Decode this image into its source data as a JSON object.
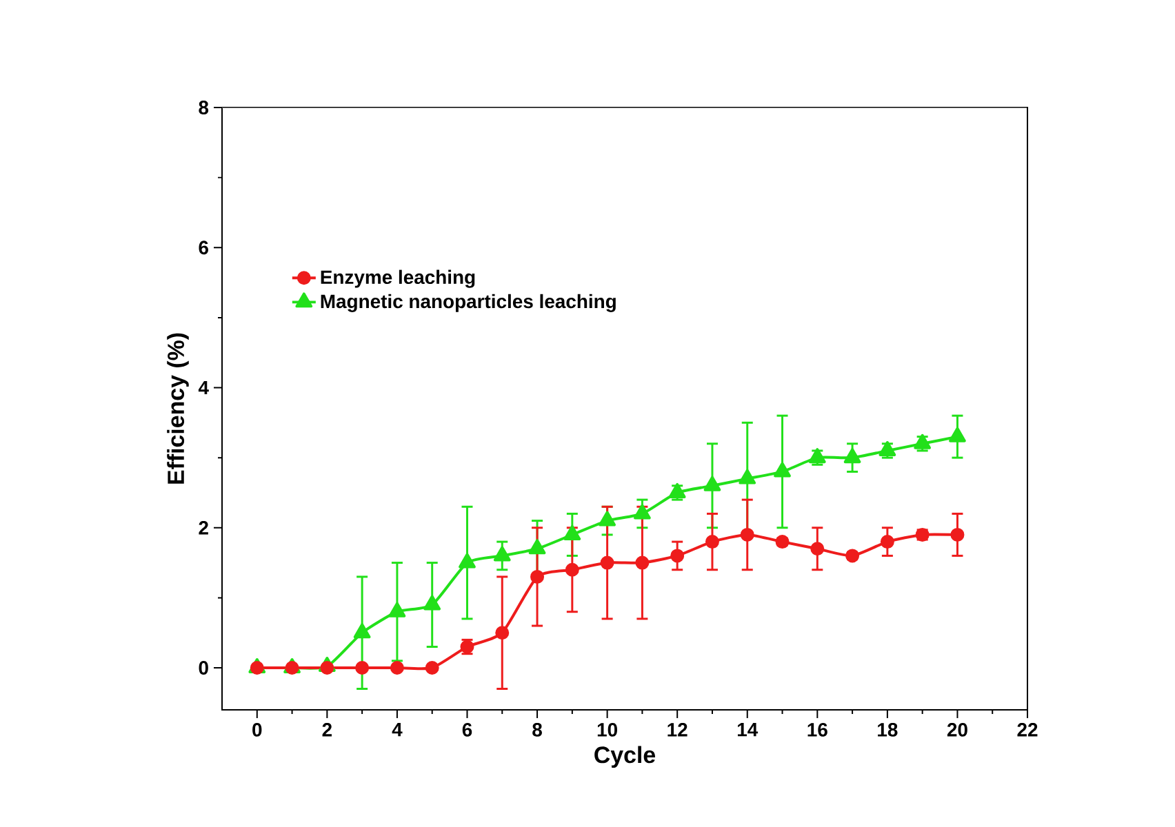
{
  "chart_data": {
    "type": "line",
    "xlabel": "Cycle",
    "ylabel": "Efficiency (%)",
    "x": [
      0,
      1,
      2,
      3,
      4,
      5,
      6,
      7,
      8,
      9,
      10,
      11,
      12,
      13,
      14,
      15,
      16,
      17,
      18,
      19,
      20
    ],
    "xlim": [
      -1,
      22
    ],
    "xticks": [
      0,
      2,
      4,
      6,
      8,
      10,
      12,
      14,
      16,
      18,
      20,
      22
    ],
    "ylim": [
      -0.6,
      8
    ],
    "yticks": [
      0,
      2,
      4,
      6,
      8
    ],
    "legend": "top left",
    "grid": false,
    "line_style": "solid",
    "series": [
      {
        "name": "Enzyme leaching",
        "color": "#ee1c1c",
        "marker": "circle",
        "values": [
          0,
          0,
          0,
          0,
          0,
          0,
          0.3,
          0.5,
          1.3,
          1.4,
          1.5,
          1.5,
          1.6,
          1.8,
          1.9,
          1.8,
          1.7,
          1.6,
          1.8,
          1.9,
          1.9
        ],
        "errors": [
          null,
          null,
          null,
          null,
          null,
          null,
          0.1,
          0.8,
          0.7,
          0.6,
          0.8,
          0.8,
          0.2,
          0.4,
          0.5,
          0.05,
          0.3,
          0.05,
          0.2,
          0.07,
          0.3
        ]
      },
      {
        "name": "Magnetic nanoparticles leaching",
        "color": "#22e01a",
        "marker": "triangle",
        "values": [
          0,
          0,
          0.02,
          0.5,
          0.8,
          0.9,
          1.5,
          1.6,
          1.7,
          1.9,
          2.1,
          2.2,
          2.5,
          2.6,
          2.7,
          2.8,
          3.0,
          3.0,
          3.1,
          3.2,
          3.3
        ],
        "errors": [
          null,
          null,
          null,
          0.8,
          0.7,
          0.6,
          0.8,
          0.2,
          0.4,
          0.3,
          0.2,
          0.2,
          0.1,
          0.6,
          0.8,
          0.8,
          0.1,
          0.2,
          0.1,
          0.1,
          0.3
        ]
      }
    ]
  }
}
